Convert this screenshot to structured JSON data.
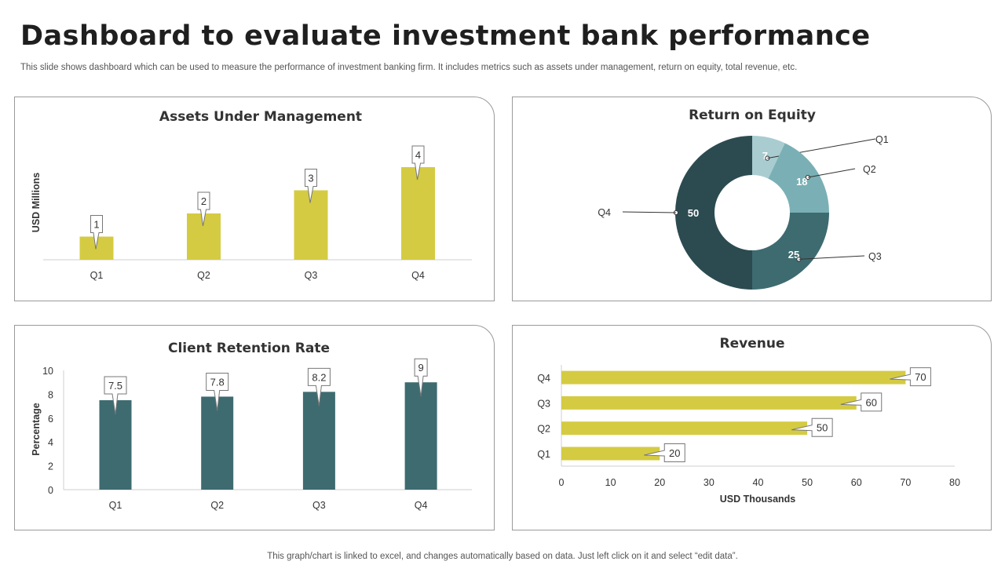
{
  "header": {
    "title": "Dashboard to evaluate investment bank performance",
    "subtitle": "This slide shows dashboard which can be used to measure the performance of investment banking firm. It includes metrics such as assets under management, return on equity, total revenue, etc."
  },
  "footer": {
    "note": "This graph/chart is linked to excel,  and changes automatically based on data. Just left click on it and select “edit data”."
  },
  "colors": {
    "olive": "#d4cb42",
    "teal": "#3d6b70",
    "q1": "#a9ccd0",
    "q2": "#7ab0b5",
    "q3": "#3d6b70",
    "q4": "#2c4b50"
  },
  "chart_data": [
    {
      "type": "bar",
      "title": "Assets Under Management",
      "categories": [
        "Q1",
        "Q2",
        "Q3",
        "Q4"
      ],
      "values": [
        1,
        2,
        3,
        4
      ],
      "data_labels": [
        "1",
        "2",
        "3",
        "4"
      ],
      "ylabel": "USD Millions",
      "xlabel": "",
      "ylim": [
        0,
        4.5
      ],
      "grid": false
    },
    {
      "type": "pie",
      "title": "Return on Equity",
      "categories": [
        "Q1",
        "Q2",
        "Q3",
        "Q4"
      ],
      "values": [
        7,
        18,
        25,
        50
      ],
      "data_labels": [
        "7",
        "18",
        "25",
        "50"
      ],
      "donut": true
    },
    {
      "type": "bar",
      "title": "Client Retention Rate",
      "categories": [
        "Q1",
        "Q2",
        "Q3",
        "Q4"
      ],
      "values": [
        7.5,
        7.8,
        8.2,
        9
      ],
      "data_labels": [
        "7.5",
        "7.8",
        "8.2",
        "9"
      ],
      "ylabel": "Percentage",
      "xlabel": "",
      "ylim": [
        0,
        10
      ],
      "yticks": [
        "0",
        "2",
        "4",
        "6",
        "8",
        "10"
      ],
      "grid": false
    },
    {
      "type": "bar",
      "orientation": "horizontal",
      "title": "Revenue",
      "categories": [
        "Q1",
        "Q2",
        "Q3",
        "Q4"
      ],
      "values": [
        20,
        50,
        60,
        70
      ],
      "data_labels": [
        "20",
        "50",
        "60",
        "70"
      ],
      "xlabel": "USD Thousands",
      "xlim": [
        0,
        80
      ],
      "xticks": [
        "0",
        "10",
        "20",
        "30",
        "40",
        "50",
        "60",
        "70",
        "80"
      ],
      "grid": false
    }
  ]
}
